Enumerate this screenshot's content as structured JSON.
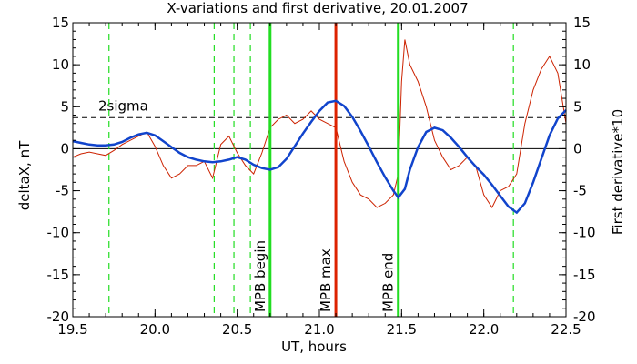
{
  "chart_data": {
    "type": "line",
    "title": "X-variations and first derivative, 20.01.2007",
    "xlabel": "UT, hours",
    "ylabel_left": "deltaX, nT",
    "ylabel_right": "First derivative*10",
    "xlim": [
      19.5,
      22.5
    ],
    "ylim": [
      -20,
      15
    ],
    "xticks": [
      "19.5",
      "20.0",
      "20.5",
      "21.0",
      "21.5",
      "22.0",
      "22.5"
    ],
    "yticks": [
      "15",
      "10",
      "5",
      "0",
      "-5",
      "-10",
      "-15",
      "-20"
    ],
    "threshold": {
      "label": "2sigma",
      "value": 3.7
    },
    "markers": [
      {
        "label": "MPB begin",
        "x": 20.7,
        "color": "#22dd22"
      },
      {
        "label": "MPB max",
        "x": 21.1,
        "color": "#dd2200"
      },
      {
        "label": "MPB end",
        "x": 21.48,
        "color": "#22dd22"
      }
    ],
    "dashed_markers": [
      19.72,
      20.36,
      20.48,
      20.58,
      22.18
    ],
    "colors": {
      "deltaX": "#1144cc",
      "derivative": "#cc2200",
      "mpb": "#22dd22",
      "mpb_max": "#dd2200",
      "frame": "#000000"
    },
    "series": [
      {
        "name": "deltaX, nT",
        "axis": "left",
        "x": [
          19.5,
          19.55,
          19.6,
          19.65,
          19.7,
          19.75,
          19.8,
          19.85,
          19.9,
          19.95,
          20.0,
          20.05,
          20.1,
          20.15,
          20.2,
          20.25,
          20.3,
          20.35,
          20.4,
          20.45,
          20.5,
          20.55,
          20.6,
          20.65,
          20.7,
          20.75,
          20.8,
          20.85,
          20.9,
          20.95,
          21.0,
          21.05,
          21.1,
          21.15,
          21.2,
          21.25,
          21.3,
          21.35,
          21.4,
          21.45,
          21.48,
          21.52,
          21.55,
          21.6,
          21.65,
          21.7,
          21.75,
          21.8,
          21.85,
          21.9,
          21.95,
          22.0,
          22.05,
          22.1,
          22.15,
          22.2,
          22.25,
          22.3,
          22.35,
          22.4,
          22.45,
          22.5
        ],
        "y": [
          0.9,
          0.7,
          0.5,
          0.4,
          0.4,
          0.5,
          0.8,
          1.3,
          1.7,
          1.9,
          1.6,
          0.9,
          0.2,
          -0.5,
          -1.0,
          -1.3,
          -1.5,
          -1.6,
          -1.5,
          -1.3,
          -1.0,
          -1.3,
          -1.9,
          -2.3,
          -2.5,
          -2.2,
          -1.2,
          0.3,
          1.8,
          3.2,
          4.5,
          5.5,
          5.7,
          5.1,
          3.8,
          2.1,
          0.3,
          -1.6,
          -3.4,
          -5.0,
          -5.8,
          -4.8,
          -2.5,
          0.2,
          2.0,
          2.5,
          2.2,
          1.3,
          0.2,
          -1.0,
          -2.1,
          -3.1,
          -4.3,
          -5.6,
          -6.9,
          -7.6,
          -6.5,
          -4.0,
          -1.2,
          1.6,
          3.6,
          4.6
        ]
      },
      {
        "name": "First derivative*10",
        "axis": "right",
        "x": [
          19.5,
          19.55,
          19.6,
          19.65,
          19.7,
          19.75,
          19.8,
          19.85,
          19.9,
          19.95,
          20.0,
          20.05,
          20.1,
          20.15,
          20.2,
          20.25,
          20.3,
          20.35,
          20.4,
          20.45,
          20.5,
          20.55,
          20.6,
          20.65,
          20.7,
          20.75,
          20.8,
          20.85,
          20.9,
          20.95,
          21.0,
          21.05,
          21.1,
          21.15,
          21.2,
          21.25,
          21.3,
          21.35,
          21.4,
          21.45,
          21.48,
          21.5,
          21.52,
          21.55,
          21.6,
          21.65,
          21.7,
          21.75,
          21.8,
          21.85,
          21.9,
          21.95,
          22.0,
          22.05,
          22.1,
          22.15,
          22.2,
          22.25,
          22.3,
          22.35,
          22.4,
          22.45,
          22.5
        ],
        "y": [
          -1.0,
          -0.6,
          -0.4,
          -0.6,
          -0.8,
          -0.2,
          0.5,
          1.0,
          1.5,
          2.0,
          0.3,
          -2.0,
          -3.5,
          -3.0,
          -2.0,
          -2.0,
          -1.5,
          -3.5,
          0.5,
          1.5,
          -0.5,
          -2.0,
          -3.0,
          -0.5,
          2.5,
          3.5,
          4.0,
          3.0,
          3.5,
          4.5,
          3.5,
          3.0,
          2.5,
          -1.5,
          -4.0,
          -5.5,
          -6.0,
          -7.0,
          -6.5,
          -5.5,
          -3.0,
          8.0,
          13.0,
          10.0,
          8.0,
          5.0,
          1.0,
          -1.0,
          -2.5,
          -2.0,
          -1.0,
          -2.0,
          -5.5,
          -7.0,
          -5.0,
          -4.5,
          -3.0,
          3.0,
          7.0,
          9.5,
          11.0,
          9.0,
          3.0
        ]
      }
    ]
  }
}
